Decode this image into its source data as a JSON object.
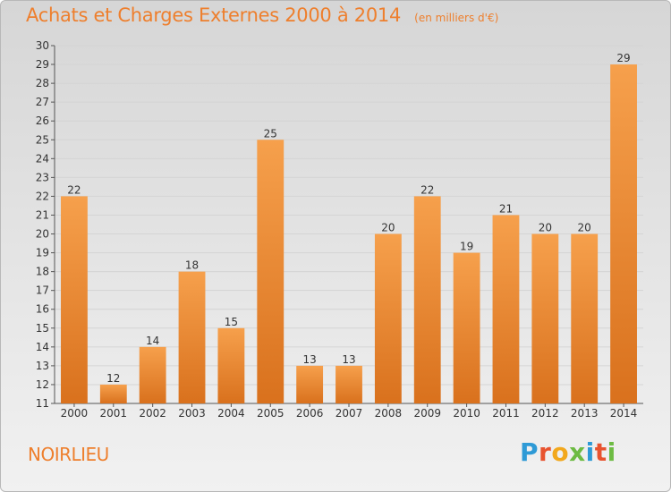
{
  "title": "Achats et Charges Externes 2000 à 2014",
  "unit": "(en milliers d'€)",
  "commune": "NOIRLIEU",
  "logo": {
    "text": "Proxiti",
    "colors": [
      "#2e9ad6",
      "#e8532f",
      "#f2a81d",
      "#6dbb43",
      "#2e9ad6",
      "#e8532f",
      "#6dbb43"
    ]
  },
  "colors": {
    "title": "#ee7f2d",
    "bar_light": "#f6a04c",
    "bar_dark": "#d9711d",
    "grid": "#d4d4d4",
    "axis": "#555555"
  },
  "chart_data": {
    "type": "bar",
    "title": "Achats et Charges Externes 2000 à 2014",
    "xlabel": "",
    "ylabel": "",
    "ylim": [
      11,
      30
    ],
    "yticks": [
      11,
      12,
      13,
      14,
      15,
      16,
      17,
      18,
      19,
      20,
      21,
      22,
      23,
      24,
      25,
      26,
      27,
      28,
      29,
      30
    ],
    "categories": [
      "2000",
      "2001",
      "2002",
      "2003",
      "2004",
      "2005",
      "2006",
      "2007",
      "2008",
      "2009",
      "2010",
      "2011",
      "2012",
      "2013",
      "2014"
    ],
    "values": [
      22,
      12,
      14,
      18,
      15,
      25,
      13,
      13,
      20,
      22,
      19,
      21,
      20,
      20,
      29
    ],
    "grid": true,
    "data_labels": true
  }
}
